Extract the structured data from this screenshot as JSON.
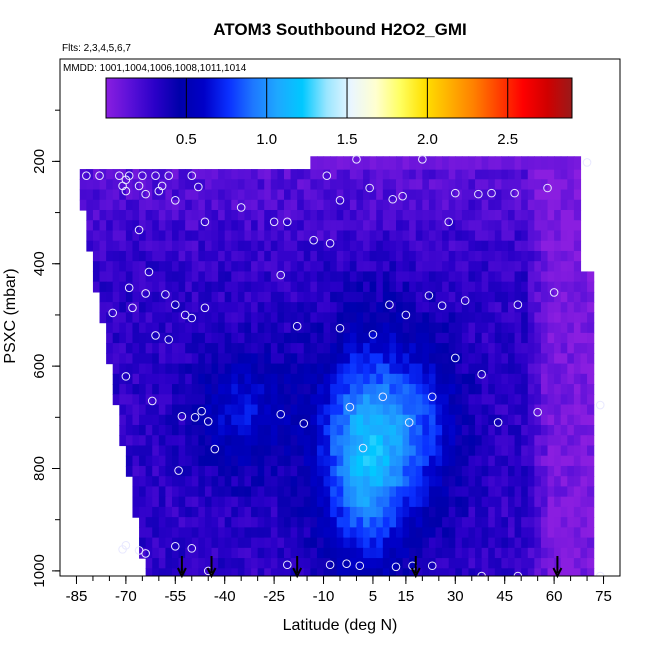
{
  "chart_data": {
    "type": "heatmap",
    "title": "ATOM3 Southbound H2O2_GMI",
    "flights_label": "Flts: 2,3,4,5,6,7",
    "dates_label": "MMDD: 1001,1004,1006,1008,1011,1014",
    "xlabel": "Latitude (deg N)",
    "ylabel": "PSXC (mbar)",
    "xlim": [
      -90,
      80
    ],
    "ylim": [
      1010,
      0
    ],
    "y_reversed": true,
    "x_ticks": [
      "-85",
      "-70",
      "-55",
      "-40",
      "-25",
      "-10",
      "5",
      "15",
      "30",
      "45",
      "60",
      "75"
    ],
    "y_ticks": [
      "200",
      "400",
      "600",
      "800",
      "1000"
    ],
    "colorbar": {
      "range": [
        0,
        2.9
      ],
      "ticks": [
        "0.5",
        "1.0",
        "1.5",
        "2.0",
        "2.5"
      ],
      "colors": [
        "#8a1ee0",
        "#5a10d8",
        "#2a00c8",
        "#0000aa",
        "#0000c8",
        "#0a30ff",
        "#1e78ff",
        "#1ea8ff",
        "#00c8ff",
        "#9ae6ff",
        "#eaf6ff",
        "#ffffd0",
        "#ffff60",
        "#ffe000",
        "#ffb000",
        "#ff8000",
        "#ff4000",
        "#ff0000",
        "#d00000",
        "#9a1a1a"
      ]
    },
    "value_levels": [
      0.05,
      0.15,
      0.25,
      0.35,
      0.45,
      0.55,
      0.65,
      0.75,
      0.85,
      0.95,
      1.05,
      1.15,
      1.25
    ],
    "surface_arrows_lat": [
      -53,
      -44,
      -18,
      18,
      61
    ],
    "observations": [
      [
        -82,
        228
      ],
      [
        -78,
        228
      ],
      [
        -72,
        228
      ],
      [
        -70,
        236
      ],
      [
        -69,
        228
      ],
      [
        -65,
        228
      ],
      [
        -61,
        228
      ],
      [
        -57,
        228
      ],
      [
        -50,
        228
      ],
      [
        -71,
        248
      ],
      [
        -70,
        258
      ],
      [
        -66,
        248
      ],
      [
        -64,
        264
      ],
      [
        -60,
        258
      ],
      [
        -59,
        248
      ],
      [
        -55,
        276
      ],
      [
        -48,
        250
      ],
      [
        -35,
        290
      ],
      [
        -25,
        318
      ],
      [
        -21,
        318
      ],
      [
        -9,
        228
      ],
      [
        -5,
        276
      ],
      [
        0,
        196
      ],
      [
        4,
        252
      ],
      [
        11,
        274
      ],
      [
        14,
        268
      ],
      [
        20,
        196
      ],
      [
        28,
        318
      ],
      [
        30,
        262
      ],
      [
        37,
        264
      ],
      [
        41,
        262
      ],
      [
        48,
        262
      ],
      [
        58,
        252
      ],
      [
        70,
        202
      ],
      [
        -46,
        318
      ],
      [
        -13,
        354
      ],
      [
        -8,
        360
      ],
      [
        -66,
        334
      ],
      [
        -63,
        416
      ],
      [
        -23,
        422
      ],
      [
        -69,
        447
      ],
      [
        -64,
        458
      ],
      [
        -58,
        460
      ],
      [
        -55,
        480
      ],
      [
        -52,
        500
      ],
      [
        -50,
        506
      ],
      [
        -46,
        486
      ],
      [
        -18,
        522
      ],
      [
        -5,
        526
      ],
      [
        5,
        538
      ],
      [
        10,
        480
      ],
      [
        15,
        500
      ],
      [
        22,
        462
      ],
      [
        26,
        482
      ],
      [
        33,
        472
      ],
      [
        49,
        480
      ],
      [
        -68,
        486
      ],
      [
        -74,
        496
      ],
      [
        -61,
        540
      ],
      [
        -57,
        548
      ],
      [
        -70,
        620
      ],
      [
        -62,
        668
      ],
      [
        -53,
        698
      ],
      [
        -49,
        700
      ],
      [
        -47,
        688
      ],
      [
        -45,
        708
      ],
      [
        -23,
        694
      ],
      [
        -16,
        712
      ],
      [
        -2,
        680
      ],
      [
        2,
        760
      ],
      [
        8,
        660
      ],
      [
        16,
        710
      ],
      [
        23,
        660
      ],
      [
        30,
        584
      ],
      [
        38,
        616
      ],
      [
        43,
        710
      ],
      [
        55,
        690
      ],
      [
        60,
        456
      ],
      [
        74,
        676
      ],
      [
        -43,
        762
      ],
      [
        -54,
        804
      ],
      [
        -70,
        950
      ],
      [
        -66,
        960
      ],
      [
        -71,
        958
      ],
      [
        -64,
        966
      ],
      [
        -55,
        952
      ],
      [
        -50,
        956
      ],
      [
        -45,
        1000
      ],
      [
        -21,
        988
      ],
      [
        -8,
        988
      ],
      [
        -3,
        986
      ],
      [
        1,
        990
      ],
      [
        12,
        992
      ],
      [
        17,
        990
      ],
      [
        23,
        990
      ],
      [
        38,
        1010
      ],
      [
        49,
        1010
      ],
      [
        74,
        1010
      ]
    ]
  }
}
